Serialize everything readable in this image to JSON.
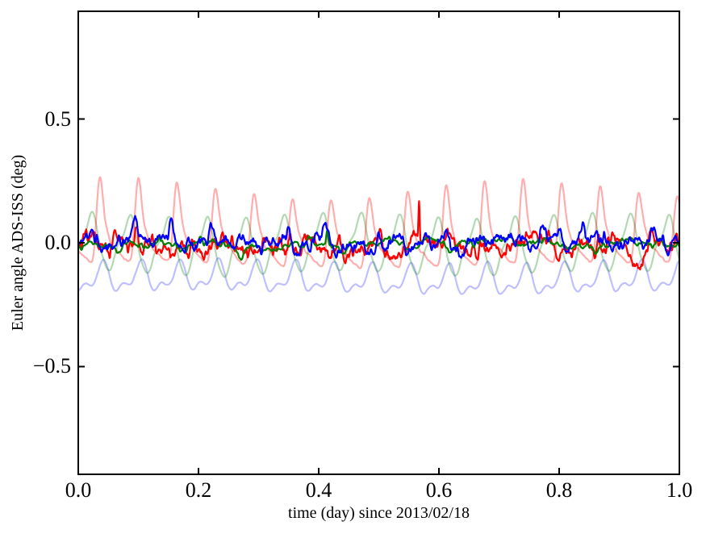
{
  "figure": {
    "background": "#ffffff",
    "axis_color": "#000000"
  },
  "chart_data": {
    "type": "line",
    "title": "",
    "xlabel": "time (day) since 2013/02/18",
    "ylabel": "Euler angle ADS-ISS (deg)",
    "xlim": [
      0.0,
      1.0
    ],
    "ylim": [
      -0.935,
      0.935
    ],
    "xticks": {
      "values": [
        0.0,
        0.2,
        0.4,
        0.6,
        0.8,
        1.0
      ],
      "labels": [
        "0.0",
        "0.2",
        "0.4",
        "0.6",
        "0.8",
        "1.0"
      ]
    },
    "yticks": {
      "values": [
        -0.5,
        0.0,
        0.5
      ],
      "labels": [
        "−0.5",
        "0.0",
        "0.5"
      ]
    },
    "grid": false,
    "legend": null,
    "tick_direction": "in",
    "tick_length": 8,
    "axis_line_width": 2,
    "orbital_period_day": 0.064,
    "series": [
      {
        "id": "pale-blue-orbital",
        "color": "#0000ff",
        "alpha": 0.25,
        "width": 2.2,
        "n": 900,
        "mean": -0.148,
        "period": 0.064,
        "terms": [
          [
            1,
            0.05,
            -2.356
          ],
          [
            2,
            0.028,
            -0.5
          ]
        ],
        "slow": [
          [
            1.1,
            0.008,
            0.3
          ]
        ],
        "walk": {
          "sigma": 0.0015,
          "rho": 0.8,
          "smooth": 2
        },
        "seed": 5
      },
      {
        "id": "pale-green-orbital",
        "color": "#008000",
        "alpha": 0.3,
        "width": 2.2,
        "n": 900,
        "mean": -0.012,
        "period": 0.064,
        "terms": [
          [
            1,
            0.105,
            -0.393
          ],
          [
            2,
            0.02,
            2.4
          ],
          [
            3,
            0.012,
            1.0
          ]
        ],
        "slow": [
          [
            2.3,
            0.01,
            1.5
          ]
        ],
        "walk": {
          "sigma": 0.0015,
          "rho": 0.8,
          "smooth": 2
        },
        "seed": 4
      },
      {
        "id": "pale-red-orbital",
        "color": "#ff0000",
        "alpha": 0.32,
        "width": 2.2,
        "n": 1100,
        "mean": -0.055,
        "period": 0.064,
        "terms": [
          [
            1,
            0.032,
            2.6
          ]
        ],
        "slow": [
          [
            1.3,
            0.012,
            0.7
          ]
        ],
        "pulse": {
          "amp": 0.25,
          "exp": 4,
          "phase": 0.7031,
          "mod": 0.15,
          "modfreq": 1.6,
          "modphase": 0.9,
          "sh": 0.085,
          "shoff": 0.14,
          "shexp": 3
        },
        "walk": {
          "sigma": 0.002,
          "rho": 0.8,
          "smooth": 2
        },
        "seed": 3
      },
      {
        "id": "red-euler",
        "color": "#ff0000",
        "alpha": 1,
        "width": 2.2,
        "n": 1500,
        "mean": -0.006,
        "period": 0.064,
        "terms": [
          [
            1,
            0.012,
            1.8
          ]
        ],
        "walk": {
          "sigma": 0.011,
          "rho": 0.9,
          "smooth": 1
        },
        "seed": 7,
        "events": [
          [
            0.05,
            -0.045,
            0.006
          ],
          [
            0.097,
            0.065,
            0.0035
          ],
          [
            0.105,
            -0.05,
            0.005
          ],
          [
            0.255,
            0.05,
            0.0025
          ],
          [
            0.3,
            -0.05,
            0.004
          ],
          [
            0.353,
            0.05,
            0.002
          ],
          [
            0.45,
            -0.055,
            0.005
          ],
          [
            0.502,
            0.08,
            0.003
          ],
          [
            0.52,
            -0.06,
            0.006
          ],
          [
            0.558,
            0.05,
            0.003
          ],
          [
            0.567,
            0.175,
            0.0012
          ],
          [
            0.615,
            0.055,
            0.0025
          ],
          [
            0.7,
            -0.045,
            0.007
          ],
          [
            0.745,
            0.05,
            0.002
          ],
          [
            0.8,
            -0.045,
            0.005
          ],
          [
            0.865,
            0.045,
            0.0025
          ],
          [
            0.93,
            -0.09,
            0.009
          ],
          [
            0.955,
            0.05,
            0.003
          ]
        ]
      },
      {
        "id": "green-euler",
        "color": "#008000",
        "alpha": 1,
        "width": 2.2,
        "n": 1500,
        "mean": -0.004,
        "period": 0.064,
        "terms": [
          [
            1,
            0.008,
            0.5
          ]
        ],
        "walk": {
          "sigma": 0.0045,
          "rho": 0.93,
          "smooth": 2
        },
        "seed": 13,
        "events": [
          [
            0.07,
            -0.04,
            0.006
          ],
          [
            0.135,
            0.03,
            0.004
          ],
          [
            0.27,
            -0.05,
            0.006
          ],
          [
            0.33,
            -0.035,
            0.01
          ],
          [
            0.414,
            0.06,
            0.0015
          ],
          [
            0.44,
            -0.045,
            0.005
          ],
          [
            0.62,
            -0.03,
            0.008
          ],
          [
            0.67,
            0.03,
            0.006
          ],
          [
            0.84,
            -0.04,
            0.006
          ],
          [
            0.955,
            -0.035,
            0.005
          ]
        ]
      },
      {
        "id": "blue-euler",
        "color": "#0000ff",
        "alpha": 1,
        "width": 2.2,
        "n": 1500,
        "mean": 0.004,
        "period": 0.064,
        "saw": {
          "period": 0.064,
          "duty": 0.78,
          "amp": 0.02,
          "phase": 0.2956
        },
        "walk": {
          "sigma": 0.009,
          "rho": 0.9,
          "smooth": 1
        },
        "seed": 21,
        "events": [
          [
            0.012,
            0.03,
            0.004
          ],
          [
            0.095,
            0.06,
            0.003
          ],
          [
            0.155,
            0.065,
            0.003
          ],
          [
            0.222,
            0.06,
            0.003
          ],
          [
            0.3,
            -0.04,
            0.005
          ],
          [
            0.35,
            0.04,
            0.003
          ],
          [
            0.41,
            0.045,
            0.004
          ],
          [
            0.5,
            0.05,
            0.003
          ],
          [
            0.545,
            -0.05,
            0.004
          ],
          [
            0.63,
            -0.04,
            0.006
          ],
          [
            0.77,
            0.04,
            0.004
          ],
          [
            0.838,
            0.065,
            0.003
          ],
          [
            0.875,
            0.05,
            0.003
          ],
          [
            0.955,
            0.045,
            0.004
          ]
        ]
      }
    ]
  }
}
